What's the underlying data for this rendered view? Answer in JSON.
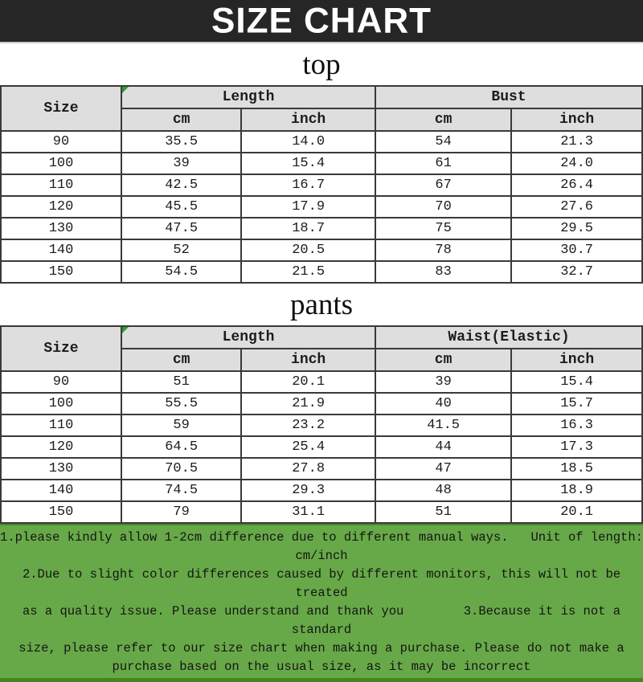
{
  "header": {
    "title": "SIZE CHART"
  },
  "colors": {
    "banner_bg": "#262626",
    "banner_text": "#ffffff",
    "table_header_bg": "#dedede",
    "table_border": "#3a3a3a",
    "corner_marker_green": "#2f9e2f",
    "footer_bg": "#67a948"
  },
  "tables": [
    {
      "title": "top",
      "size_header": "Size",
      "groups": [
        {
          "label": "Length"
        },
        {
          "label": "Bust"
        }
      ],
      "units": [
        "cm",
        "inch",
        "cm",
        "inch"
      ],
      "rows": [
        [
          "90",
          "35.5",
          "14.0",
          "54",
          "21.3"
        ],
        [
          "100",
          "39",
          "15.4",
          "61",
          "24.0"
        ],
        [
          "110",
          "42.5",
          "16.7",
          "67",
          "26.4"
        ],
        [
          "120",
          "45.5",
          "17.9",
          "70",
          "27.6"
        ],
        [
          "130",
          "47.5",
          "18.7",
          "75",
          "29.5"
        ],
        [
          "140",
          "52",
          "20.5",
          "78",
          "30.7"
        ],
        [
          "150",
          "54.5",
          "21.5",
          "83",
          "32.7"
        ]
      ]
    },
    {
      "title": "pants",
      "size_header": "Size",
      "groups": [
        {
          "label": "Length"
        },
        {
          "label": "Waist(Elastic)"
        }
      ],
      "units": [
        "cm",
        "inch",
        "cm",
        "inch"
      ],
      "rows": [
        [
          "90",
          "51",
          "20.1",
          "39",
          "15.4"
        ],
        [
          "100",
          "55.5",
          "21.9",
          "40",
          "15.7"
        ],
        [
          "110",
          "59",
          "23.2",
          "41.5",
          "16.3"
        ],
        [
          "120",
          "64.5",
          "25.4",
          "44",
          "17.3"
        ],
        [
          "130",
          "70.5",
          "27.8",
          "47",
          "18.5"
        ],
        [
          "140",
          "74.5",
          "29.3",
          "48",
          "18.9"
        ],
        [
          "150",
          "79",
          "31.1",
          "51",
          "20.1"
        ]
      ]
    }
  ],
  "footer": {
    "lines": [
      "1.please kindly allow 1-2cm difference due to different manual ways.   Unit of length:",
      "cm/inch",
      "2.Due to slight color differences caused by different monitors, this will not be treated",
      "as a quality issue. Please understand and thank you        3.Because it is not a standard",
      "size, please refer to our size chart when making a purchase. Please do not make a",
      "purchase based on the usual size, as it may be incorrect"
    ]
  }
}
